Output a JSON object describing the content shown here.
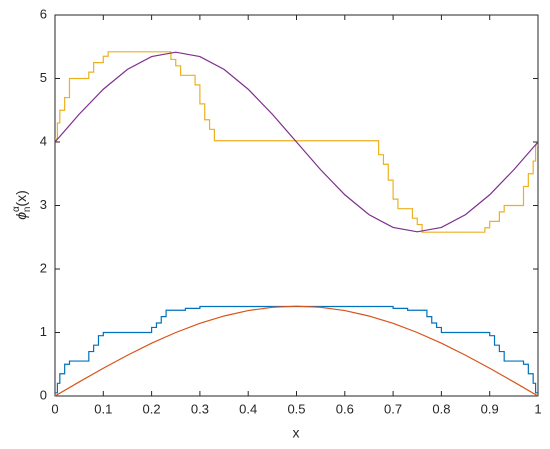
{
  "chart_data": {
    "type": "line",
    "xlabel": "x",
    "ylabel": {
      "base": "ϕ",
      "sub": "n",
      "sup": "α",
      "arg": "(x)"
    },
    "xlim": [
      0,
      1
    ],
    "xticks": [
      0,
      0.1,
      0.2,
      0.3,
      0.4,
      0.5,
      0.6,
      0.7,
      0.8,
      0.9,
      1
    ],
    "ylim": [
      0,
      6
    ],
    "yticks": [
      0,
      1,
      2,
      3,
      4,
      5,
      6
    ],
    "grid": false,
    "box": true,
    "series": [
      {
        "color": "#0072BD",
        "x": [
          0,
          0.005,
          0.005,
          0.01,
          0.01,
          0.02,
          0.02,
          0.03,
          0.03,
          0.07,
          0.07,
          0.08,
          0.08,
          0.09,
          0.09,
          0.1,
          0.1,
          0.2,
          0.2,
          0.21,
          0.21,
          0.22,
          0.22,
          0.23,
          0.23,
          0.27,
          0.27,
          0.3,
          0.3,
          0.7,
          0.7,
          0.73,
          0.73,
          0.77,
          0.77,
          0.78,
          0.78,
          0.79,
          0.79,
          0.8,
          0.8,
          0.9,
          0.9,
          0.91,
          0.91,
          0.92,
          0.92,
          0.93,
          0.93,
          0.97,
          0.97,
          0.98,
          0.98,
          0.99,
          0.99,
          0.995,
          0.995,
          1
        ],
        "values": [
          0.05,
          0.05,
          0.2,
          0.2,
          0.35,
          0.35,
          0.5,
          0.5,
          0.55,
          0.55,
          0.7,
          0.7,
          0.8,
          0.8,
          0.95,
          0.95,
          1.0,
          1.0,
          1.08,
          1.08,
          1.15,
          1.15,
          1.25,
          1.25,
          1.35,
          1.35,
          1.38,
          1.38,
          1.41,
          1.41,
          1.38,
          1.38,
          1.35,
          1.35,
          1.25,
          1.25,
          1.15,
          1.15,
          1.08,
          1.08,
          1.0,
          1.0,
          0.95,
          0.95,
          0.8,
          0.8,
          0.7,
          0.7,
          0.55,
          0.55,
          0.5,
          0.5,
          0.35,
          0.35,
          0.2,
          0.2,
          0.05,
          0.05
        ]
      },
      {
        "color": "#D95319",
        "x": [
          0,
          0.05,
          0.1,
          0.15,
          0.2,
          0.25,
          0.3,
          0.35,
          0.4,
          0.45,
          0.5,
          0.55,
          0.6,
          0.65,
          0.7,
          0.75,
          0.8,
          0.85,
          0.9,
          0.95,
          1
        ],
        "values": [
          0,
          0.2212,
          0.437,
          0.642,
          0.8313,
          1,
          1.1441,
          1.2601,
          1.345,
          1.3968,
          1.4142,
          1.3968,
          1.345,
          1.2601,
          1.1441,
          1,
          0.8313,
          0.642,
          0.437,
          0.2212,
          0
        ]
      },
      {
        "color": "#EDB120",
        "x": [
          0,
          0.005,
          0.005,
          0.01,
          0.01,
          0.02,
          0.02,
          0.03,
          0.03,
          0.07,
          0.07,
          0.08,
          0.08,
          0.1,
          0.1,
          0.11,
          0.11,
          0.24,
          0.24,
          0.25,
          0.25,
          0.26,
          0.26,
          0.29,
          0.29,
          0.3,
          0.3,
          0.31,
          0.31,
          0.32,
          0.32,
          0.33,
          0.33,
          0.67,
          0.67,
          0.68,
          0.68,
          0.69,
          0.69,
          0.7,
          0.7,
          0.71,
          0.71,
          0.74,
          0.74,
          0.75,
          0.75,
          0.76,
          0.76,
          0.89,
          0.89,
          0.9,
          0.9,
          0.92,
          0.92,
          0.93,
          0.93,
          0.97,
          0.97,
          0.98,
          0.98,
          0.99,
          0.99,
          0.995,
          0.995,
          1
        ],
        "values": [
          4.05,
          4.05,
          4.3,
          4.3,
          4.5,
          4.5,
          4.7,
          4.7,
          5.0,
          5.0,
          5.1,
          5.1,
          5.25,
          5.25,
          5.35,
          5.35,
          5.42,
          5.42,
          5.3,
          5.3,
          5.2,
          5.2,
          5.05,
          5.05,
          4.9,
          4.9,
          4.6,
          4.6,
          4.35,
          4.35,
          4.2,
          4.2,
          4.02,
          4.02,
          3.8,
          3.8,
          3.65,
          3.65,
          3.4,
          3.4,
          3.1,
          3.1,
          2.95,
          2.95,
          2.8,
          2.8,
          2.7,
          2.7,
          2.58,
          2.58,
          2.65,
          2.65,
          2.75,
          2.75,
          2.9,
          2.9,
          3.0,
          3.0,
          3.3,
          3.3,
          3.5,
          3.5,
          3.7,
          3.7,
          3.95,
          3.95
        ]
      },
      {
        "color": "#7E2F8E",
        "x": [
          0,
          0.05,
          0.1,
          0.15,
          0.2,
          0.25,
          0.3,
          0.35,
          0.4,
          0.45,
          0.5,
          0.55,
          0.6,
          0.65,
          0.7,
          0.75,
          0.8,
          0.85,
          0.9,
          0.95,
          1
        ],
        "values": [
          4,
          4.437,
          4.831,
          5.144,
          5.345,
          5.414,
          5.345,
          5.144,
          4.831,
          4.437,
          4,
          3.563,
          3.169,
          2.856,
          2.655,
          2.586,
          2.655,
          2.856,
          3.169,
          3.563,
          4
        ]
      }
    ]
  }
}
